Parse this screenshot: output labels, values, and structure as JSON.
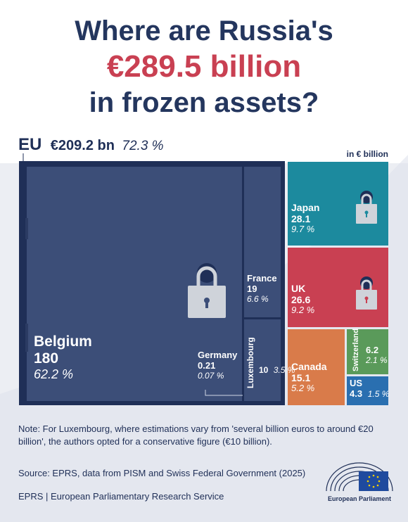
{
  "title": {
    "line1": "Where are Russia's",
    "line2": "€289.5 billion",
    "line3": "in frozen assets?"
  },
  "eu": {
    "name": "EU",
    "value": "€209.2 bn",
    "pct": "72.3 %"
  },
  "unit": "in € billion",
  "chart_data": {
    "type": "treemap",
    "unit": "€ billion",
    "total": 289.5,
    "groups": [
      {
        "name": "EU",
        "value": 209.2,
        "pct": 72.3,
        "children": [
          {
            "name": "Belgium",
            "value": 180,
            "pct": 62.2
          },
          {
            "name": "France",
            "value": 19,
            "pct": 6.6
          },
          {
            "name": "Luxembourg",
            "value": 10,
            "pct": 3.5
          },
          {
            "name": "Germany",
            "value": 0.21,
            "pct": 0.07
          }
        ]
      }
    ],
    "items": [
      {
        "name": "Japan",
        "value": 28.1,
        "pct": 9.7
      },
      {
        "name": "UK",
        "value": 26.6,
        "pct": 9.2
      },
      {
        "name": "Canada",
        "value": 15.1,
        "pct": 5.2
      },
      {
        "name": "Switzerland",
        "value": 6.2,
        "pct": 2.1
      },
      {
        "name": "US",
        "value": 4.3,
        "pct": 1.5
      }
    ],
    "labels": {
      "Belgium": {
        "value": "180",
        "pct": "62.2 %"
      },
      "France": {
        "value": "19",
        "pct": "6.6 %"
      },
      "Luxembourg": {
        "value": "10",
        "pct": "3.5 %"
      },
      "Germany": {
        "value": "0.21",
        "pct": "0.07 %"
      },
      "Japan": {
        "value": "28.1",
        "pct": "9.7 %"
      },
      "UK": {
        "value": "26.6",
        "pct": "9.2 %"
      },
      "Canada": {
        "value": "15.1",
        "pct": "5.2 %"
      },
      "Switzerland": {
        "value": "6.2",
        "pct": "2.1 %"
      },
      "US": {
        "value": "4.3",
        "pct": "1.5 %"
      }
    },
    "colors": {
      "eu_border": "#1f2f57",
      "eu": "#3c4e78",
      "Japan": "#1c8a9e",
      "UK": "#c94052",
      "Canada": "#d97b4a",
      "Switzerland": "#5a9a5a",
      "US": "#2a6fb0"
    }
  },
  "note": "Note: For Luxembourg, where estimations vary from 'several billion euros to around €20 billion', the authors opted for a conservative figure (€10 billion).",
  "source": "Source: EPRS, data from PISM and Swiss Federal Government (2025)",
  "footer": "EPRS | European Parliamentary Research Service",
  "logo_label": "European Parliament"
}
